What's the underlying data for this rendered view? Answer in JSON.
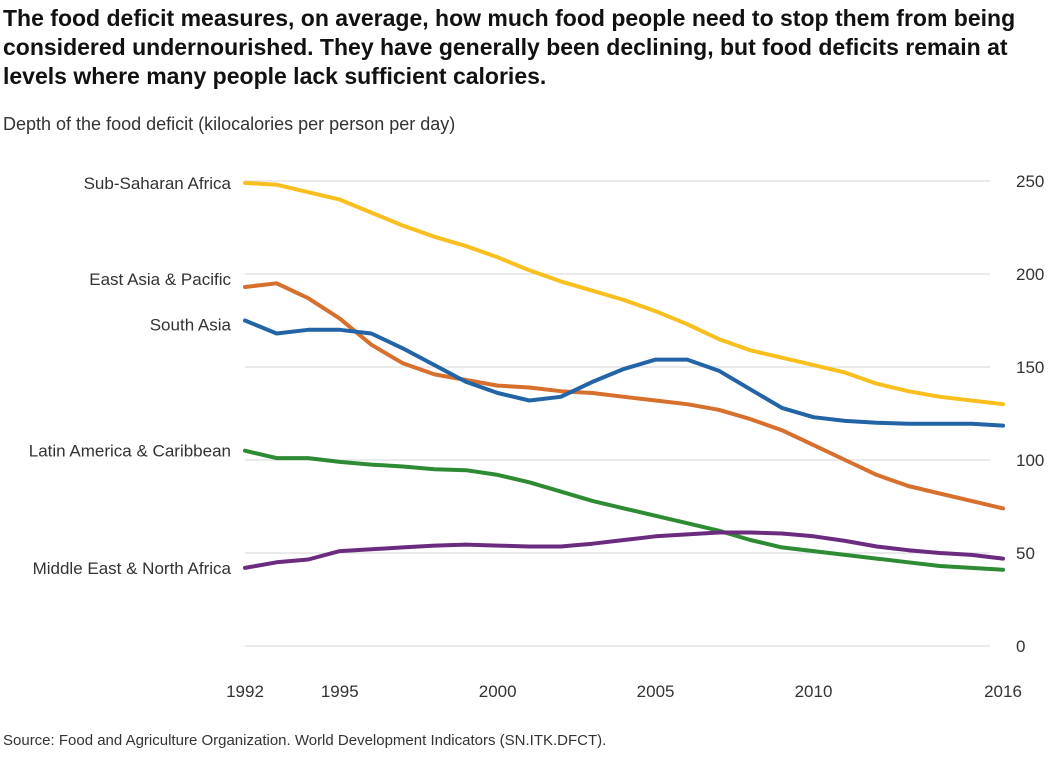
{
  "title": "The food deficit measures, on average, how much food people need to stop them from being considered undernourished. They have generally been declining, but food deficits remain at levels where many people lack sufficient calories.",
  "source": "Source: Food and Agriculture Organization. World Development Indicators (SN.ITK.DFCT).",
  "chart_data": {
    "type": "line",
    "title": "",
    "ylabel": "Depth of the food deficit (kilocalories per person per day)",
    "xlabel": "",
    "x": [
      1992,
      1993,
      1994,
      1995,
      1996,
      1997,
      1998,
      1999,
      2000,
      2001,
      2002,
      2003,
      2004,
      2005,
      2006,
      2007,
      2008,
      2009,
      2010,
      2011,
      2012,
      2013,
      2014,
      2015,
      2016
    ],
    "xticks": [
      1992,
      1995,
      2000,
      2005,
      2010,
      2016
    ],
    "yticks": [
      0,
      50,
      100,
      150,
      200,
      250
    ],
    "xlim": [
      1992,
      2016
    ],
    "ylim": [
      0,
      250
    ],
    "grid": true,
    "y_axis_side": "right",
    "legend": "inline-left",
    "series": [
      {
        "name": "Sub-Saharan Africa",
        "color": "#f9bf1e",
        "values": [
          249,
          248,
          244,
          240,
          233,
          226,
          220,
          215,
          209,
          202,
          196,
          191,
          186,
          180,
          173,
          165,
          159,
          155,
          151,
          147,
          141,
          137,
          134,
          132,
          130
        ]
      },
      {
        "name": "East Asia & Pacific",
        "color": "#d76f2d",
        "values": [
          193,
          195,
          187,
          176,
          162,
          152,
          146,
          143,
          140,
          139,
          137,
          136,
          134,
          132,
          130,
          127,
          122,
          116,
          108,
          100,
          92,
          86,
          82,
          78,
          74
        ]
      },
      {
        "name": "South Asia",
        "color": "#2264a5",
        "values": [
          175,
          168,
          170,
          170,
          168,
          160,
          151,
          142,
          136,
          132,
          134,
          142,
          149,
          154,
          154,
          148,
          138,
          128,
          123,
          121,
          120,
          119.5,
          119.5,
          119.5,
          118.5
        ]
      },
      {
        "name": "Latin America & Caribbean",
        "color": "#2e8b34",
        "values": [
          105,
          101,
          101,
          99,
          97.5,
          96.5,
          95,
          94.5,
          92,
          88,
          83,
          78,
          74,
          70,
          66,
          62,
          57,
          53,
          51,
          49,
          47,
          45,
          43,
          42,
          41
        ]
      },
      {
        "name": "Middle East & North Africa",
        "color": "#6b2c80",
        "values": [
          42,
          45,
          46.5,
          51,
          52,
          53,
          54,
          54.5,
          54,
          53.5,
          53.5,
          55,
          57,
          59,
          60,
          61,
          61,
          60.5,
          59,
          56.5,
          53.5,
          51.5,
          50,
          49,
          47
        ]
      }
    ]
  }
}
